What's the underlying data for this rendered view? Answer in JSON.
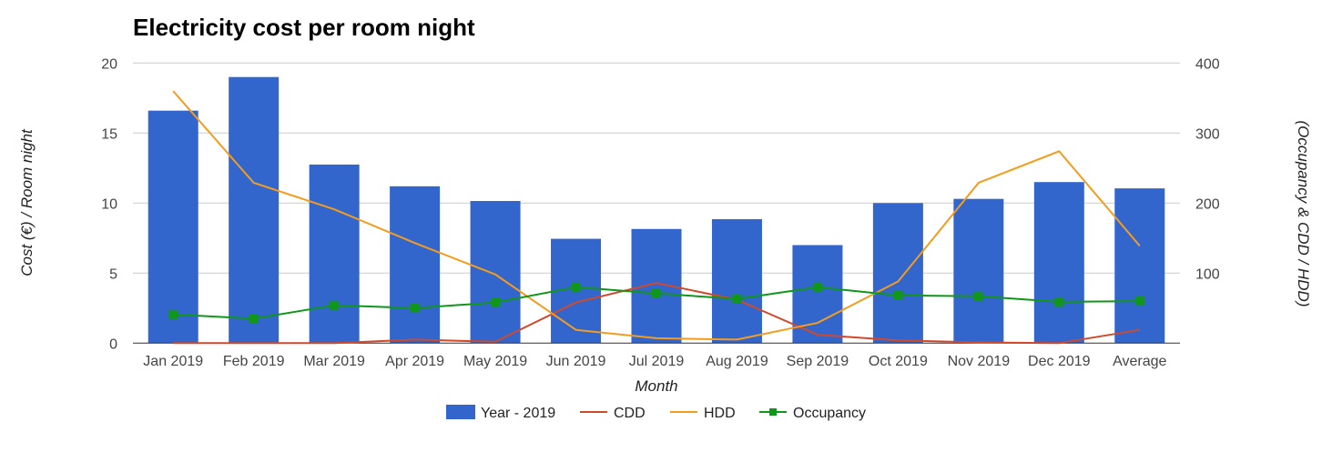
{
  "chart_data": {
    "type": "bar",
    "title": "Electricity cost per room night",
    "xlabel": "Month",
    "ylabel": "Cost (€) / Room night",
    "ylabel_right": "(Occupancy & CDD / HDD)",
    "categories": [
      "Jan 2019",
      "Feb 2019",
      "Mar 2019",
      "Apr 2019",
      "May 2019",
      "Jun 2019",
      "Jul 2019",
      "Aug 2019",
      "Sep 2019",
      "Oct 2019",
      "Nov 2019",
      "Dec 2019",
      "Average"
    ],
    "ylim": [
      0,
      20
    ],
    "ylim_right": [
      0,
      400
    ],
    "yticks": [
      "0",
      "5",
      "10",
      "15",
      "20"
    ],
    "yticks_values": [
      0,
      5,
      10,
      15,
      20
    ],
    "yticks_right": [
      "100",
      "200",
      "300",
      "400"
    ],
    "yticks_right_values": [
      100,
      200,
      300,
      400
    ],
    "grid": true,
    "legend_position": "bottom",
    "series": [
      {
        "name": "Year - 2019",
        "type": "bar",
        "axis": "left",
        "color": "#3366cc",
        "values": [
          16.6,
          19.0,
          12.75,
          11.2,
          10.15,
          7.45,
          8.15,
          8.85,
          7.0,
          10.0,
          10.3,
          11.5,
          11.05
        ]
      },
      {
        "name": "CDD",
        "type": "line",
        "axis": "right",
        "color": "#d04a2a",
        "values": [
          0,
          0,
          0,
          5,
          2,
          58,
          86,
          62,
          12,
          4,
          1,
          0,
          19
        ]
      },
      {
        "name": "HDD",
        "type": "line",
        "axis": "right",
        "color": "#f39c1e",
        "values": [
          360,
          229,
          191,
          143,
          98,
          19,
          7,
          5,
          29,
          88,
          229,
          274,
          139
        ]
      },
      {
        "name": "Occupancy",
        "type": "line",
        "axis": "right",
        "color": "#109618",
        "marker": "square",
        "values": [
          41,
          35,
          54,
          50,
          58,
          80,
          71,
          63,
          80,
          68,
          67,
          59,
          60
        ]
      }
    ]
  }
}
